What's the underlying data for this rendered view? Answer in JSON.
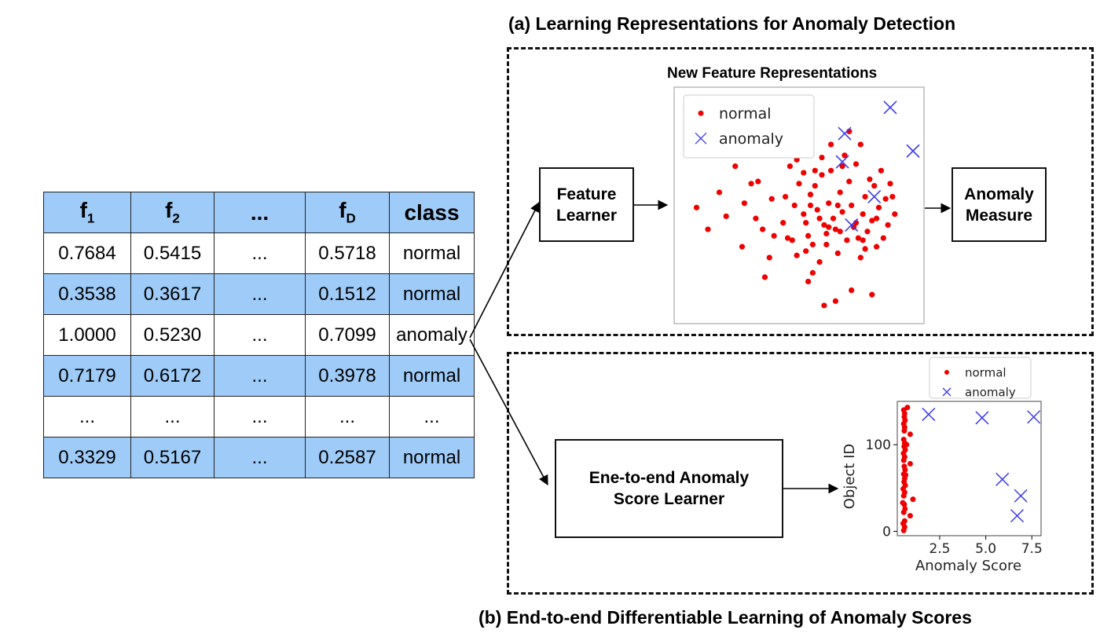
{
  "table": {
    "headers": [
      {
        "base": "f",
        "sub": "1"
      },
      {
        "base": "f",
        "sub": "2"
      },
      {
        "base": "...",
        "sub": ""
      },
      {
        "base": "f",
        "sub": "D"
      },
      {
        "base": "class",
        "sub": ""
      }
    ],
    "rows": [
      [
        "0.7684",
        "0.5415",
        "...",
        "0.5718",
        "normal"
      ],
      [
        "0.3538",
        "0.3617",
        "...",
        "0.1512",
        "normal"
      ],
      [
        "1.0000",
        "0.5230",
        "...",
        "0.7099",
        "anomaly"
      ],
      [
        "0.7179",
        "0.6172",
        "...",
        "0.3978",
        "normal"
      ],
      [
        "...",
        "...",
        "...",
        "...",
        "..."
      ],
      [
        "0.3329",
        "0.5167",
        "...",
        "0.2587",
        "normal"
      ]
    ]
  },
  "panel_a": {
    "heading": "(a) Learning Representations for Anomaly Detection",
    "feature_learner": "Feature\nLearner",
    "anomaly_measure": "Anomaly\nMeasure",
    "plot_title": "New Feature Representations"
  },
  "panel_b": {
    "heading": "(b) End-to-end Differentiable Learning of Anomaly Scores",
    "score_learner": "Ene-to-end Anomaly\nScore Learner"
  },
  "colors": {
    "table_blue": "#9fcbf8",
    "normal": "#ee0000",
    "anomaly": "#3b3bee"
  },
  "chart_data": [
    {
      "type": "scatter",
      "title": "New Feature Representations",
      "xlabel": "",
      "ylabel": "",
      "axes_ticks": "none",
      "xlim": [
        0,
        10
      ],
      "ylim": [
        0,
        10
      ],
      "legend": [
        "normal",
        "anomaly"
      ],
      "legend_position": "top-left",
      "series": [
        {
          "name": "normal",
          "marker": "dot",
          "color": "#ee0000",
          "points": [
            [
              0.5,
              4.9
            ],
            [
              1.0,
              3.9
            ],
            [
              1.5,
              5.6
            ],
            [
              1.8,
              4.5
            ],
            [
              2.2,
              6.8
            ],
            [
              2.5,
              3.1
            ],
            [
              2.6,
              5.1
            ],
            [
              2.9,
              6.0
            ],
            [
              3.1,
              4.4
            ],
            [
              3.4,
              3.9
            ],
            [
              3.2,
              6.1
            ],
            [
              3.9,
              3.6
            ],
            [
              3.7,
              2.6
            ],
            [
              3.8,
              5.3
            ],
            [
              4.3,
              4.2
            ],
            [
              4.5,
              3.5
            ],
            [
              4.6,
              6.8
            ],
            [
              4.9,
              7.1
            ],
            [
              5.0,
              6.0
            ],
            [
              4.8,
              5.0
            ],
            [
              5.2,
              4.6
            ],
            [
              5.3,
              4.2
            ],
            [
              5.4,
              3.6
            ],
            [
              5.5,
              5.5
            ],
            [
              5.6,
              3.2
            ],
            [
              5.7,
              5.9
            ],
            [
              5.8,
              4.8
            ],
            [
              5.9,
              2.4
            ],
            [
              6.0,
              6.4
            ],
            [
              6.1,
              4.1
            ],
            [
              6.2,
              3.7
            ],
            [
              6.3,
              5.1
            ],
            [
              6.4,
              6.6
            ],
            [
              6.5,
              4.4
            ],
            [
              6.6,
              3.9
            ],
            [
              6.7,
              2.8
            ],
            [
              6.8,
              5.6
            ],
            [
              6.9,
              4.7
            ],
            [
              7.0,
              7.3
            ],
            [
              7.1,
              3.4
            ],
            [
              7.2,
              6.1
            ],
            [
              7.3,
              5.0
            ],
            [
              7.4,
              4.0
            ],
            [
              7.5,
              6.9
            ],
            [
              7.6,
              3.5
            ],
            [
              7.7,
              2.6
            ],
            [
              7.8,
              4.6
            ],
            [
              7.9,
              5.4
            ],
            [
              8.0,
              3.8
            ],
            [
              8.1,
              6.2
            ],
            [
              8.2,
              4.3
            ],
            [
              8.3,
              5.9
            ],
            [
              8.4,
              3.1
            ],
            [
              8.5,
              4.9
            ],
            [
              8.6,
              6.6
            ],
            [
              8.7,
              3.5
            ],
            [
              8.8,
              5.3
            ],
            [
              8.9,
              4.1
            ],
            [
              9.0,
              6.0
            ],
            [
              9.1,
              5.4
            ],
            [
              9.2,
              4.6
            ],
            [
              7.3,
              1.1
            ],
            [
              8.2,
              0.9
            ],
            [
              6.6,
              0.6
            ],
            [
              5.6,
              1.9
            ],
            [
              4.7,
              3.4
            ],
            [
              4.9,
              2.7
            ],
            [
              5.3,
              2.9
            ],
            [
              6.2,
              3.2
            ],
            [
              6.8,
              3.8
            ],
            [
              7.8,
              3.4
            ],
            [
              5.7,
              6.6
            ],
            [
              6.4,
              7.8
            ],
            [
              6.9,
              6.8
            ],
            [
              7.7,
              7.8
            ],
            [
              6.0,
              7.2
            ],
            [
              7.2,
              8.4
            ],
            [
              5.2,
              6.5
            ],
            [
              4.4,
              5.4
            ],
            [
              5.9,
              4.4
            ],
            [
              6.7,
              5.0
            ],
            [
              7.5,
              4.2
            ],
            [
              8.4,
              4.4
            ],
            [
              7.9,
              3.0
            ],
            [
              5.5,
              5.0
            ],
            [
              6.3,
              4.0
            ],
            [
              3.5,
              1.7
            ],
            [
              5.4,
              1.5
            ],
            [
              6.1,
              0.4
            ]
          ]
        },
        {
          "name": "anomaly",
          "marker": "x",
          "color": "#3b3bee",
          "points": [
            [
              7.0,
              8.3
            ],
            [
              6.9,
              7.0
            ],
            [
              8.3,
              5.4
            ],
            [
              7.3,
              4.1
            ],
            [
              9.0,
              9.5
            ],
            [
              10.0,
              7.5
            ]
          ]
        }
      ]
    },
    {
      "type": "scatter",
      "title": "",
      "xlabel": "Anomaly Score",
      "ylabel": "Object ID",
      "xticks": [
        "2.5",
        "5.0",
        "7.5"
      ],
      "yticks": [
        "0",
        "100"
      ],
      "xlim": [
        0.2,
        8.0
      ],
      "ylim": [
        -5,
        150
      ],
      "legend": [
        "normal",
        "anomaly"
      ],
      "legend_position": "top-right",
      "series": [
        {
          "name": "normal",
          "marker": "dot",
          "color": "#ee0000",
          "points": [
            [
              0.55,
              1
            ],
            [
              0.6,
              5
            ],
            [
              0.52,
              9
            ],
            [
              0.6,
              12
            ],
            [
              0.9,
              18
            ],
            [
              0.55,
              22
            ],
            [
              0.62,
              26
            ],
            [
              0.58,
              31
            ],
            [
              1.05,
              37
            ],
            [
              0.55,
              41
            ],
            [
              0.6,
              45
            ],
            [
              0.52,
              49
            ],
            [
              0.63,
              53
            ],
            [
              0.57,
              57
            ],
            [
              0.6,
              61
            ],
            [
              0.55,
              66
            ],
            [
              0.62,
              71
            ],
            [
              0.58,
              75
            ],
            [
              0.9,
              78
            ],
            [
              0.55,
              82
            ],
            [
              0.6,
              86
            ],
            [
              0.54,
              90
            ],
            [
              0.63,
              94
            ],
            [
              0.57,
              98
            ],
            [
              0.6,
              102
            ],
            [
              0.55,
              106
            ],
            [
              0.9,
              112
            ],
            [
              0.58,
              116
            ],
            [
              0.6,
              120
            ],
            [
              0.55,
              124
            ],
            [
              0.62,
              128
            ],
            [
              0.58,
              132
            ],
            [
              0.6,
              136
            ],
            [
              0.55,
              140
            ],
            [
              0.75,
              143
            ],
            [
              0.65,
              65
            ],
            [
              0.7,
              100
            ],
            [
              0.5,
              33
            ]
          ]
        },
        {
          "name": "anomaly",
          "marker": "x",
          "color": "#3b3bee",
          "points": [
            [
              1.9,
              135
            ],
            [
              4.8,
              131
            ],
            [
              7.6,
              132
            ],
            [
              5.9,
              60
            ],
            [
              6.9,
              41
            ],
            [
              6.7,
              18
            ]
          ]
        }
      ]
    }
  ]
}
